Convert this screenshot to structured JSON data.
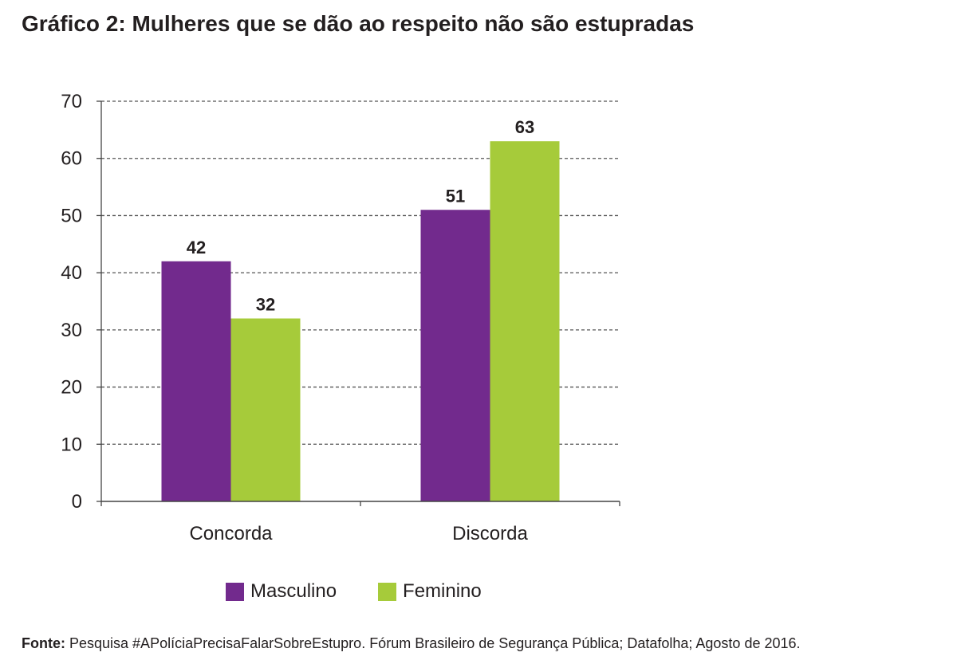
{
  "title": "Gráfico 2: Mulheres que se dão ao respeito não são estupradas",
  "source": {
    "label": "Fonte:",
    "text": "Pesquisa #APolíciaPrecisaFalarSobreEstupro. Fórum Brasileiro de Segurança Pública; Datafolha; Agosto de 2016."
  },
  "chart_data": {
    "type": "bar",
    "title": "Gráfico 2: Mulheres que se dão ao respeito não são estupradas",
    "categories": [
      "Concorda",
      "Discorda"
    ],
    "series": [
      {
        "name": "Masculino",
        "values": [
          42,
          51
        ],
        "color": "#722a8d"
      },
      {
        "name": "Feminino",
        "values": [
          32,
          63
        ],
        "color": "#a6cb3a"
      }
    ],
    "ylim": [
      0,
      70
    ],
    "yticks": [
      0,
      10,
      20,
      30,
      40,
      50,
      60,
      70
    ],
    "grid": true,
    "grid_style": "dashed",
    "legend_position": "bottom",
    "data_labels": true,
    "xlabel": "",
    "ylabel": ""
  }
}
